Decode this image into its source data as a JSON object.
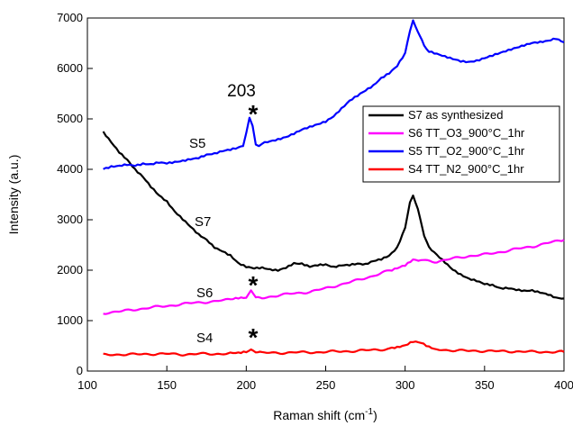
{
  "chart_data": {
    "type": "line",
    "title": "",
    "xlabel": "Raman shift (cm",
    "xlabel_sup": "-1",
    "xlabel_end": ")",
    "ylabel": "Intensity (a.u.)",
    "xlim": [
      100,
      400
    ],
    "ylim": [
      0,
      7000
    ],
    "x_ticks": [
      100,
      150,
      200,
      250,
      300,
      350,
      400
    ],
    "y_ticks": [
      0,
      1000,
      2000,
      3000,
      4000,
      5000,
      6000,
      7000
    ],
    "legend_position": "center-right",
    "series": [
      {
        "name": "S7  as synthesized",
        "color": "#000000",
        "points": [
          [
            110,
            4750
          ],
          [
            115,
            4550
          ],
          [
            120,
            4350
          ],
          [
            125,
            4200
          ],
          [
            130,
            4000
          ],
          [
            135,
            3850
          ],
          [
            140,
            3650
          ],
          [
            145,
            3480
          ],
          [
            150,
            3350
          ],
          [
            155,
            3150
          ],
          [
            160,
            3000
          ],
          [
            165,
            2850
          ],
          [
            170,
            2700
          ],
          [
            175,
            2600
          ],
          [
            180,
            2450
          ],
          [
            185,
            2380
          ],
          [
            190,
            2300
          ],
          [
            195,
            2150
          ],
          [
            200,
            2080
          ],
          [
            205,
            2050
          ],
          [
            210,
            2060
          ],
          [
            215,
            2020
          ],
          [
            220,
            2000
          ],
          [
            225,
            2050
          ],
          [
            230,
            2130
          ],
          [
            235,
            2120
          ],
          [
            240,
            2060
          ],
          [
            245,
            2090
          ],
          [
            250,
            2100
          ],
          [
            255,
            2050
          ],
          [
            260,
            2090
          ],
          [
            265,
            2100
          ],
          [
            270,
            2130
          ],
          [
            275,
            2120
          ],
          [
            280,
            2190
          ],
          [
            285,
            2230
          ],
          [
            290,
            2300
          ],
          [
            295,
            2460
          ],
          [
            300,
            2850
          ],
          [
            303,
            3350
          ],
          [
            305,
            3500
          ],
          [
            308,
            3200
          ],
          [
            312,
            2700
          ],
          [
            315,
            2450
          ],
          [
            320,
            2300
          ],
          [
            325,
            2150
          ],
          [
            330,
            2000
          ],
          [
            335,
            1900
          ],
          [
            340,
            1820
          ],
          [
            345,
            1780
          ],
          [
            350,
            1720
          ],
          [
            355,
            1700
          ],
          [
            360,
            1640
          ],
          [
            365,
            1650
          ],
          [
            370,
            1620
          ],
          [
            375,
            1600
          ],
          [
            380,
            1610
          ],
          [
            385,
            1570
          ],
          [
            390,
            1530
          ],
          [
            395,
            1460
          ],
          [
            400,
            1440
          ]
        ]
      },
      {
        "name": "S6  TT_O3_900°C_1hr",
        "color": "#ff00ff",
        "points": [
          [
            110,
            1150
          ],
          [
            120,
            1180
          ],
          [
            130,
            1220
          ],
          [
            140,
            1260
          ],
          [
            150,
            1290
          ],
          [
            160,
            1330
          ],
          [
            170,
            1360
          ],
          [
            180,
            1380
          ],
          [
            190,
            1420
          ],
          [
            195,
            1450
          ],
          [
            200,
            1460
          ],
          [
            203,
            1600
          ],
          [
            206,
            1470
          ],
          [
            210,
            1450
          ],
          [
            220,
            1500
          ],
          [
            230,
            1540
          ],
          [
            240,
            1570
          ],
          [
            250,
            1640
          ],
          [
            260,
            1720
          ],
          [
            270,
            1800
          ],
          [
            280,
            1890
          ],
          [
            290,
            1990
          ],
          [
            295,
            2050
          ],
          [
            300,
            2110
          ],
          [
            305,
            2220
          ],
          [
            310,
            2200
          ],
          [
            320,
            2170
          ],
          [
            330,
            2230
          ],
          [
            340,
            2280
          ],
          [
            350,
            2310
          ],
          [
            360,
            2360
          ],
          [
            370,
            2420
          ],
          [
            380,
            2470
          ],
          [
            390,
            2540
          ],
          [
            400,
            2600
          ]
        ]
      },
      {
        "name": "S5  TT_O2_900°C_1hr",
        "color": "#0000ff",
        "points": [
          [
            110,
            4000
          ],
          [
            115,
            4050
          ],
          [
            120,
            4070
          ],
          [
            125,
            4100
          ],
          [
            130,
            4080
          ],
          [
            135,
            4120
          ],
          [
            140,
            4110
          ],
          [
            145,
            4150
          ],
          [
            150,
            4130
          ],
          [
            155,
            4150
          ],
          [
            160,
            4170
          ],
          [
            165,
            4200
          ],
          [
            170,
            4220
          ],
          [
            175,
            4280
          ],
          [
            180,
            4300
          ],
          [
            185,
            4350
          ],
          [
            190,
            4380
          ],
          [
            195,
            4420
          ],
          [
            198,
            4460
          ],
          [
            200,
            4700
          ],
          [
            202,
            5000
          ],
          [
            204,
            4850
          ],
          [
            206,
            4500
          ],
          [
            208,
            4480
          ],
          [
            210,
            4520
          ],
          [
            215,
            4560
          ],
          [
            220,
            4600
          ],
          [
            225,
            4650
          ],
          [
            230,
            4720
          ],
          [
            235,
            4800
          ],
          [
            240,
            4850
          ],
          [
            245,
            4900
          ],
          [
            250,
            4950
          ],
          [
            255,
            5050
          ],
          [
            260,
            5200
          ],
          [
            265,
            5350
          ],
          [
            270,
            5450
          ],
          [
            275,
            5550
          ],
          [
            280,
            5650
          ],
          [
            285,
            5800
          ],
          [
            290,
            5900
          ],
          [
            295,
            6050
          ],
          [
            300,
            6300
          ],
          [
            303,
            6750
          ],
          [
            305,
            6950
          ],
          [
            308,
            6750
          ],
          [
            312,
            6450
          ],
          [
            315,
            6350
          ],
          [
            320,
            6300
          ],
          [
            325,
            6250
          ],
          [
            330,
            6200
          ],
          [
            335,
            6150
          ],
          [
            340,
            6130
          ],
          [
            345,
            6150
          ],
          [
            350,
            6200
          ],
          [
            355,
            6250
          ],
          [
            360,
            6300
          ],
          [
            365,
            6350
          ],
          [
            370,
            6400
          ],
          [
            375,
            6450
          ],
          [
            380,
            6500
          ],
          [
            385,
            6520
          ],
          [
            390,
            6550
          ],
          [
            395,
            6600
          ],
          [
            400,
            6520
          ]
        ]
      },
      {
        "name": "S4  TT_N2_900°C_1hr",
        "color": "#ff0000",
        "points": [
          [
            110,
            320
          ],
          [
            120,
            330
          ],
          [
            130,
            330
          ],
          [
            140,
            340
          ],
          [
            150,
            340
          ],
          [
            160,
            330
          ],
          [
            170,
            340
          ],
          [
            180,
            340
          ],
          [
            190,
            350
          ],
          [
            195,
            350
          ],
          [
            200,
            370
          ],
          [
            203,
            430
          ],
          [
            206,
            370
          ],
          [
            210,
            360
          ],
          [
            220,
            360
          ],
          [
            230,
            370
          ],
          [
            240,
            370
          ],
          [
            250,
            380
          ],
          [
            260,
            390
          ],
          [
            270,
            400
          ],
          [
            280,
            420
          ],
          [
            290,
            440
          ],
          [
            295,
            460
          ],
          [
            300,
            500
          ],
          [
            305,
            580
          ],
          [
            310,
            560
          ],
          [
            315,
            480
          ],
          [
            320,
            430
          ],
          [
            330,
            410
          ],
          [
            340,
            400
          ],
          [
            350,
            400
          ],
          [
            360,
            390
          ],
          [
            370,
            390
          ],
          [
            380,
            380
          ],
          [
            390,
            380
          ],
          [
            400,
            380
          ]
        ]
      }
    ],
    "annotations": {
      "s5": "S5",
      "s7": "S7",
      "s6": "S6",
      "s4": "S4",
      "peak": "203",
      "star": "*"
    }
  }
}
